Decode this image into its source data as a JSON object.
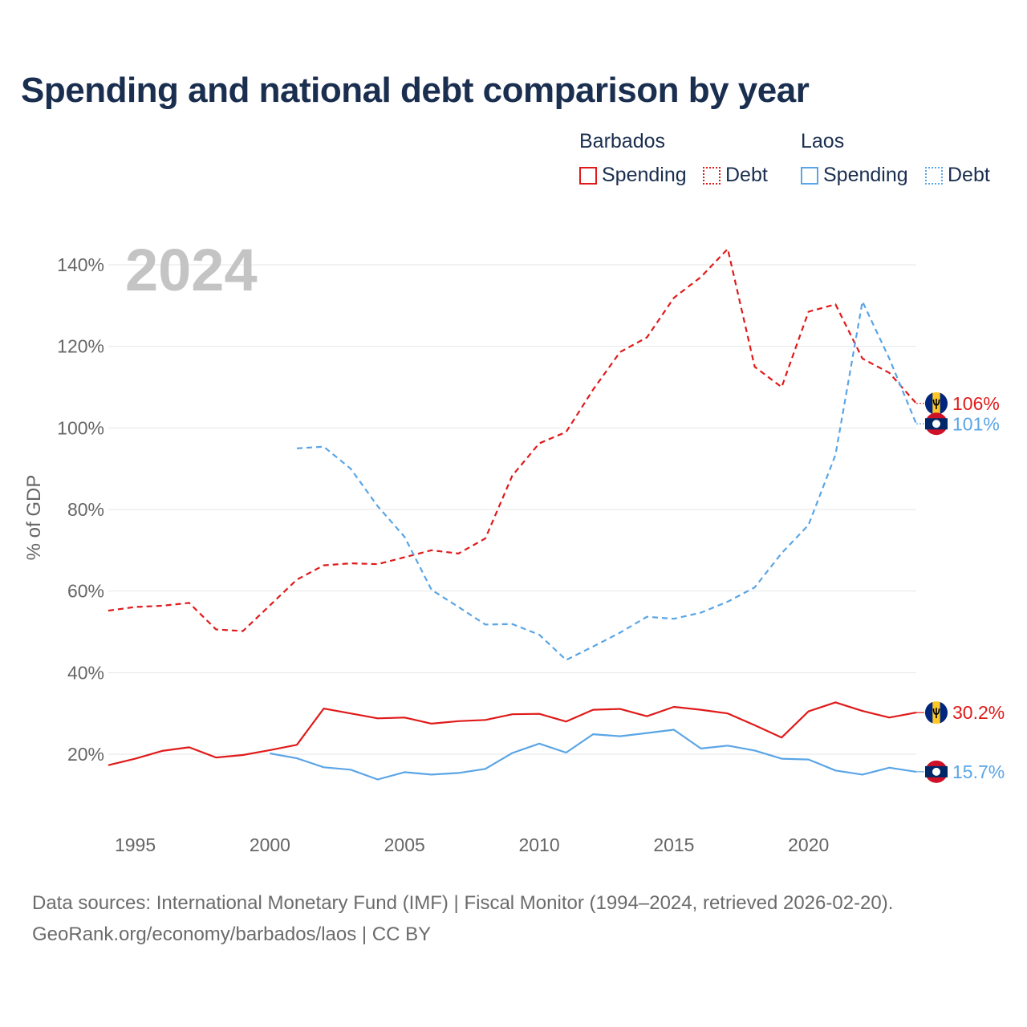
{
  "title": "Spending and national debt comparison by year",
  "legend": {
    "groups": [
      {
        "name": "Barbados",
        "items": [
          "Spending",
          "Debt"
        ]
      },
      {
        "name": "Laos",
        "items": [
          "Spending",
          "Debt"
        ]
      }
    ]
  },
  "year_watermark": "2024",
  "footer": {
    "line1": "Data sources: International Monetary Fund (IMF) | Fiscal Monitor (1994–2024, retrieved 2026-02-20).",
    "line2": "GeoRank.org/economy/barbados/laos | CC BY"
  },
  "colors": {
    "barbados": "#e01a1a",
    "laos": "#5aa5e6",
    "grid": "#e6e6e6",
    "text": "#1a2e4f",
    "axis_text": "#666666",
    "watermark": "#c4c4c4"
  },
  "chart_data": {
    "type": "line",
    "ylabel": "% of GDP",
    "xlabel": "",
    "xlim": [
      1994,
      2024
    ],
    "ylim": [
      10,
      150
    ],
    "x_ticks": [
      1995,
      2000,
      2005,
      2010,
      2015,
      2020
    ],
    "y_ticks": [
      20,
      40,
      60,
      80,
      100,
      120,
      140
    ],
    "y_tick_labels": [
      "20%",
      "40%",
      "60%",
      "80%",
      "100%",
      "120%",
      "140%"
    ],
    "series": [
      {
        "name": "Barbados Debt",
        "country": "Barbados",
        "measure": "Debt",
        "style": "dashed",
        "x": [
          1994,
          1995,
          1996,
          1997,
          1998,
          1999,
          2000,
          2001,
          2002,
          2003,
          2004,
          2005,
          2006,
          2007,
          2008,
          2009,
          2010,
          2011,
          2012,
          2013,
          2014,
          2015,
          2016,
          2017,
          2018,
          2019,
          2020,
          2021,
          2022,
          2023,
          2024
        ],
        "values": [
          55.2,
          56.1,
          56.4,
          57.1,
          50.6,
          50.2,
          56.5,
          62.8,
          66.3,
          66.8,
          66.6,
          68.3,
          70.0,
          69.2,
          72.9,
          88.3,
          96.2,
          99.0,
          109.4,
          118.6,
          122.2,
          131.9,
          137.0,
          143.9,
          115.0,
          110.0,
          128.5,
          130.3,
          117.0,
          113.5,
          106.0
        ],
        "end_label": "106%"
      },
      {
        "name": "Laos Debt",
        "country": "Laos",
        "measure": "Debt",
        "style": "dashed",
        "x": [
          2001,
          2002,
          2003,
          2004,
          2005,
          2006,
          2007,
          2008,
          2009,
          2010,
          2011,
          2012,
          2013,
          2014,
          2015,
          2016,
          2017,
          2018,
          2019,
          2020,
          2021,
          2022,
          2023,
          2024
        ],
        "values": [
          95.0,
          95.4,
          90.0,
          80.8,
          73.3,
          60.3,
          56.1,
          51.8,
          51.9,
          49.3,
          43.1,
          46.4,
          49.8,
          53.7,
          53.2,
          54.7,
          57.4,
          60.9,
          69.3,
          76.2,
          93.4,
          131.0,
          117.0,
          101.0
        ],
        "end_label": "101%"
      },
      {
        "name": "Barbados Spending",
        "country": "Barbados",
        "measure": "Spending",
        "style": "solid",
        "x": [
          1994,
          1995,
          1996,
          1997,
          1998,
          1999,
          2000,
          2001,
          2002,
          2003,
          2004,
          2005,
          2006,
          2007,
          2008,
          2009,
          2010,
          2011,
          2012,
          2013,
          2014,
          2015,
          2016,
          2017,
          2018,
          2019,
          2020,
          2021,
          2022,
          2023,
          2024
        ],
        "values": [
          17.3,
          18.9,
          20.8,
          21.7,
          19.2,
          19.8,
          21.0,
          22.3,
          31.2,
          30.0,
          28.8,
          29.0,
          27.5,
          28.1,
          28.4,
          29.8,
          29.9,
          28.0,
          30.9,
          31.1,
          29.3,
          31.6,
          30.9,
          30.0,
          27.1,
          24.1,
          30.5,
          32.7,
          30.6,
          29.0,
          30.2
        ],
        "end_label": "30.2%"
      },
      {
        "name": "Laos Spending",
        "country": "Laos",
        "measure": "Spending",
        "style": "solid",
        "x": [
          2000,
          2001,
          2002,
          2003,
          2004,
          2005,
          2006,
          2007,
          2008,
          2009,
          2010,
          2011,
          2012,
          2013,
          2014,
          2015,
          2016,
          2017,
          2018,
          2019,
          2020,
          2021,
          2022,
          2023,
          2024
        ],
        "values": [
          20.2,
          19.0,
          16.8,
          16.2,
          13.8,
          15.6,
          15.0,
          15.4,
          16.4,
          20.3,
          22.6,
          20.4,
          24.9,
          24.4,
          25.2,
          26.0,
          21.4,
          22.1,
          20.9,
          18.9,
          18.7,
          16.0,
          15.0,
          16.7,
          15.7
        ],
        "end_label": "15.7%"
      }
    ]
  }
}
